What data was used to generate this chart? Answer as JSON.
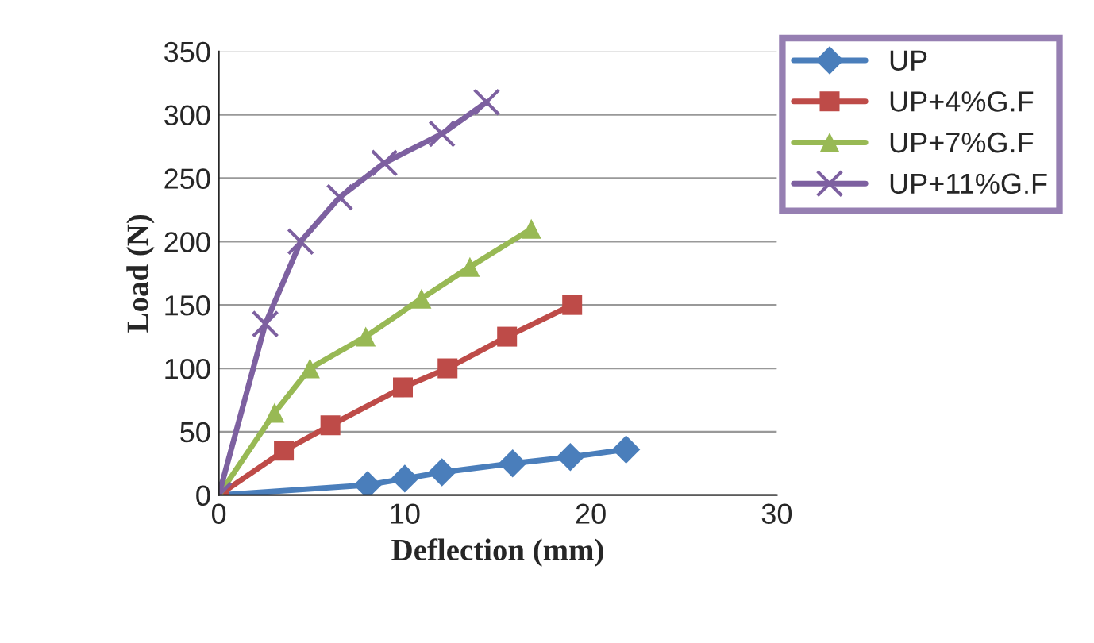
{
  "chart_data": {
    "type": "line",
    "xlabel": "Deflection (mm)",
    "ylabel": "Load (N)",
    "xlim": [
      0,
      30
    ],
    "xticks": [
      0,
      10,
      20,
      30
    ],
    "ylim": [
      0,
      350
    ],
    "yticks": [
      0,
      50,
      100,
      150,
      200,
      250,
      300,
      350
    ],
    "grid": "y",
    "legend": "right",
    "series": [
      {
        "name": "UP",
        "color": "#4a7ebb",
        "marker": "diamond",
        "x": [
          0,
          8,
          10,
          12,
          15.8,
          18.9,
          21.9
        ],
        "values": [
          0,
          8,
          13,
          18,
          25,
          30,
          36
        ]
      },
      {
        "name": "UP+4%G.F",
        "color": "#be4b48",
        "marker": "square",
        "x": [
          0,
          3.5,
          6,
          9.9,
          12.3,
          15.5,
          19
        ],
        "values": [
          0,
          35,
          55,
          85,
          100,
          125,
          150
        ]
      },
      {
        "name": "UP+7%G.F",
        "color": "#98b954",
        "marker": "triangle",
        "x": [
          0,
          3,
          4.9,
          7.9,
          10.9,
          13.5,
          16.8
        ],
        "values": [
          0,
          65,
          100,
          125,
          155,
          180,
          210
        ]
      },
      {
        "name": "UP+11%G.F",
        "color": "#7d60a0",
        "marker": "cross",
        "x": [
          0,
          2.5,
          4.4,
          6.5,
          8.9,
          12,
          14.4
        ],
        "values": [
          0,
          135,
          200,
          235,
          262,
          285,
          310
        ]
      }
    ]
  }
}
